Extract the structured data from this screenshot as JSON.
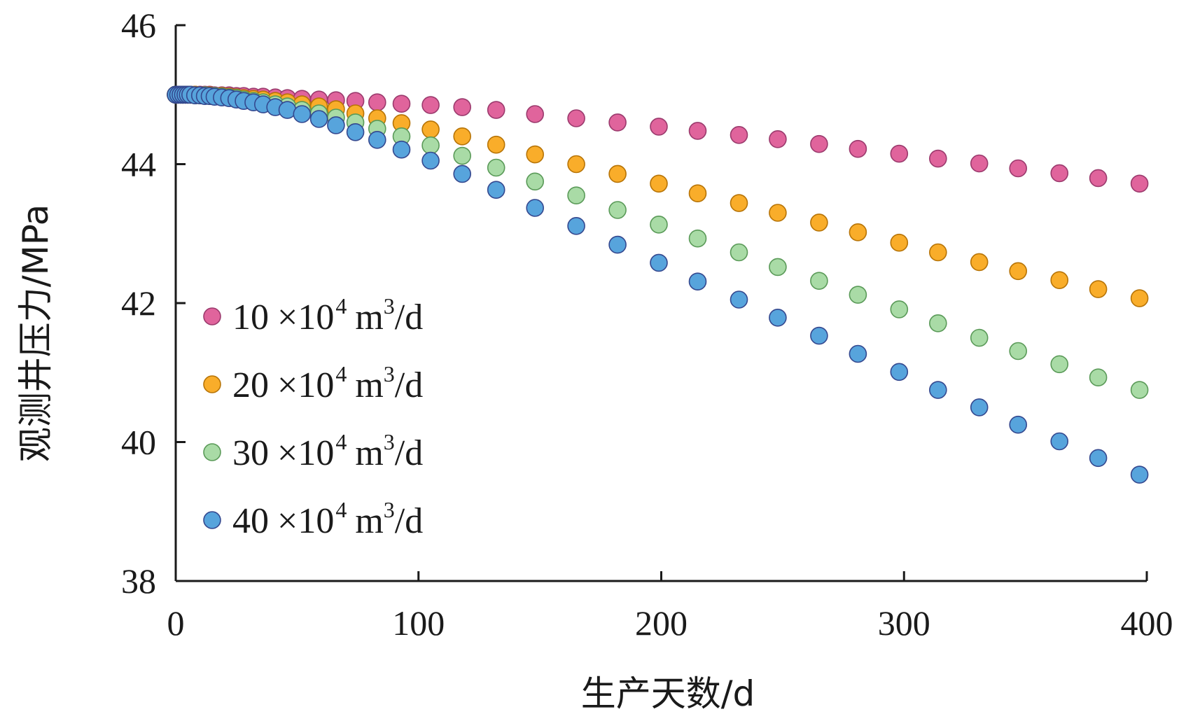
{
  "chart_data": {
    "type": "scatter",
    "xlabel": "生产天数/d",
    "ylabel": "观测井压力/MPa",
    "xlim": [
      0,
      400
    ],
    "ylim": [
      38,
      46
    ],
    "xticks": [
      0,
      100,
      200,
      300,
      400
    ],
    "yticks": [
      38,
      40,
      42,
      44,
      46
    ],
    "xtick_labels": [
      "0",
      "100",
      "200",
      "300",
      "400"
    ],
    "ytick_labels": [
      "38",
      "40",
      "42",
      "44",
      "46"
    ],
    "grid": false,
    "legend_position": "bottom-left",
    "x": [
      0,
      1,
      2,
      3,
      4,
      5,
      6,
      8,
      10,
      12,
      14,
      16,
      19,
      22,
      25,
      28,
      32,
      36,
      41,
      46,
      52,
      59,
      66,
      74,
      83,
      93,
      105,
      118,
      132,
      148,
      165,
      182,
      199,
      215,
      232,
      248,
      265,
      281,
      298,
      314,
      331,
      347,
      364,
      380,
      397
    ],
    "series": [
      {
        "name_parts": [
          "10",
          "×10",
          "4",
          "m",
          "3",
          "/d"
        ],
        "color": "#e0649c",
        "stroke": "#9b3a6d",
        "values": [
          45,
          45,
          45,
          45,
          45,
          45,
          45,
          45,
          45,
          45,
          45,
          44.99,
          44.99,
          44.99,
          44.98,
          44.98,
          44.97,
          44.97,
          44.96,
          44.95,
          44.94,
          44.93,
          44.92,
          44.91,
          44.89,
          44.87,
          44.85,
          44.82,
          44.78,
          44.72,
          44.66,
          44.6,
          44.54,
          44.48,
          44.42,
          44.36,
          44.29,
          44.22,
          44.15,
          44.08,
          44.01,
          43.94,
          43.87,
          43.8,
          43.72
        ]
      },
      {
        "name_parts": [
          "20",
          "×10",
          "4",
          "m",
          "3",
          "/d"
        ],
        "color": "#f9ad2a",
        "stroke": "#b77407",
        "values": [
          45,
          45,
          45,
          45,
          45,
          45,
          45,
          45,
          44.99,
          44.99,
          44.99,
          44.98,
          44.98,
          44.97,
          44.96,
          44.95,
          44.94,
          44.93,
          44.91,
          44.89,
          44.86,
          44.83,
          44.79,
          44.73,
          44.66,
          44.59,
          44.5,
          44.4,
          44.28,
          44.14,
          44,
          43.86,
          43.72,
          43.58,
          43.44,
          43.3,
          43.16,
          43.02,
          42.87,
          42.73,
          42.59,
          42.46,
          42.33,
          42.2,
          42.07
        ]
      },
      {
        "name_parts": [
          "30",
          "×10",
          "4",
          "m",
          "3",
          "/d"
        ],
        "color": "#a9dba6",
        "stroke": "#5a9a58",
        "values": [
          45,
          45,
          45,
          45,
          45,
          45,
          45,
          44.99,
          44.99,
          44.99,
          44.98,
          44.98,
          44.97,
          44.96,
          44.95,
          44.93,
          44.91,
          44.89,
          44.86,
          44.83,
          44.78,
          44.73,
          44.67,
          44.6,
          44.51,
          44.4,
          44.27,
          44.12,
          43.95,
          43.75,
          43.55,
          43.34,
          43.13,
          42.93,
          42.73,
          42.52,
          42.32,
          42.12,
          41.91,
          41.71,
          41.5,
          41.31,
          41.12,
          40.93,
          40.75
        ]
      },
      {
        "name_parts": [
          "40",
          "×10",
          "4",
          "m",
          "3",
          "/d"
        ],
        "color": "#57a4dc",
        "stroke": "#34488f",
        "values": [
          45,
          45,
          45,
          45,
          45,
          45,
          45,
          44.99,
          44.99,
          44.98,
          44.98,
          44.97,
          44.96,
          44.95,
          44.93,
          44.91,
          44.89,
          44.86,
          44.82,
          44.78,
          44.72,
          44.65,
          44.56,
          44.46,
          44.35,
          44.21,
          44.05,
          43.86,
          43.63,
          43.37,
          43.11,
          42.84,
          42.58,
          42.31,
          42.05,
          41.79,
          41.53,
          41.27,
          41.01,
          40.75,
          40.5,
          40.25,
          40.01,
          39.77,
          39.53
        ]
      }
    ]
  }
}
